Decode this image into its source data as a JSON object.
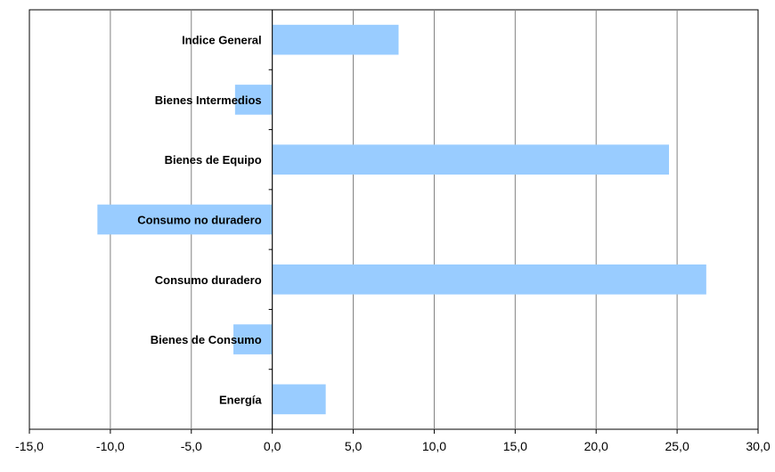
{
  "chart_data": {
    "type": "bar",
    "orientation": "horizontal",
    "categories": [
      "Indice General",
      "Bienes Intermedios",
      "Bienes de Equipo",
      "Consumo no duradero",
      "Consumo duradero",
      "Bienes de Consumo",
      "Energía"
    ],
    "values": [
      7.8,
      -2.3,
      24.5,
      -10.8,
      26.8,
      -2.4,
      3.3
    ],
    "title": "",
    "xlabel": "",
    "ylabel": "",
    "xlim": [
      -15,
      30
    ],
    "xticks": [
      -15,
      -10,
      -5,
      0,
      5,
      10,
      15,
      20,
      25,
      30
    ],
    "xtick_labels": [
      "-15,0",
      "-10,0",
      "-5,0",
      "0,0",
      "5,0",
      "10,0",
      "15,0",
      "20,0",
      "25,0",
      "30,0"
    ],
    "grid": "vertical",
    "legend": "none",
    "bar_color": "#99ccff",
    "grid_color": "#808080"
  }
}
